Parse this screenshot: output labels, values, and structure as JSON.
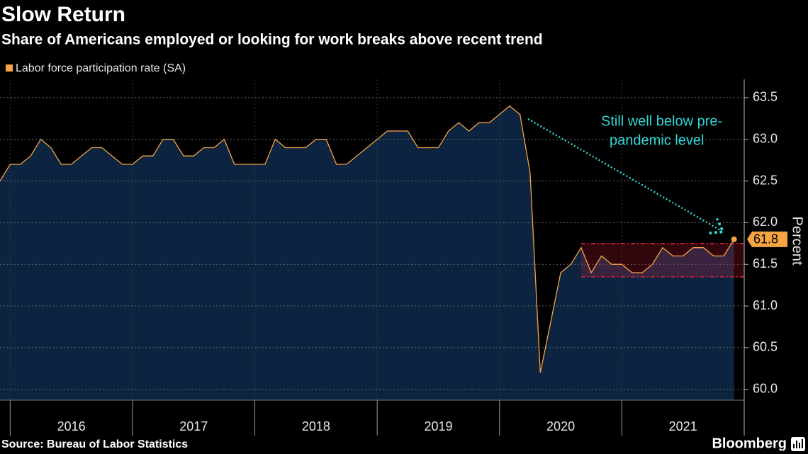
{
  "chart_data": {
    "type": "area",
    "title": "Slow Return",
    "subtitle": "Share of Americans employed or looking for work breaks above recent trend",
    "y_axis_label": "Percent",
    "source": "Source: Bureau of Labor Statistics",
    "brand": "Bloomberg",
    "annotation": [
      "Still well below pre-",
      "pandemic level"
    ],
    "annotation_color": "#33d6d6",
    "highlight_band": {
      "ylim": [
        61.35,
        61.75
      ],
      "x_start": 2020.667,
      "color": "#e0203a"
    },
    "grid": true,
    "legend": "top-left",
    "xlim": [
      2015.917,
      2022.0
    ],
    "xticks": [
      2016,
      2017,
      2018,
      2019,
      2020,
      2021,
      2022
    ],
    "year_labels": [
      {
        "value": 2016.5,
        "label": "2016"
      },
      {
        "value": 2017.5,
        "label": "2017"
      },
      {
        "value": 2018.5,
        "label": "2018"
      },
      {
        "value": 2019.5,
        "label": "2019"
      },
      {
        "value": 2020.5,
        "label": "2020"
      },
      {
        "value": 2021.5,
        "label": "2021"
      }
    ],
    "ylim": [
      59.87,
      63.72
    ],
    "yticks": [
      {
        "value": 60,
        "label": "60.0"
      },
      60.5,
      {
        "value": 61,
        "label": "61.0"
      },
      61.5,
      {
        "value": 62,
        "label": "62.0"
      },
      62.5,
      {
        "value": 63,
        "label": "63.0"
      },
      63.5
    ],
    "x": [
      2015.917,
      2016.0,
      2016.083,
      2016.167,
      2016.25,
      2016.333,
      2016.417,
      2016.5,
      2016.583,
      2016.667,
      2016.75,
      2016.833,
      2016.917,
      2017.0,
      2017.083,
      2017.167,
      2017.25,
      2017.333,
      2017.417,
      2017.5,
      2017.583,
      2017.667,
      2017.75,
      2017.833,
      2017.917,
      2018.0,
      2018.083,
      2018.167,
      2018.25,
      2018.333,
      2018.417,
      2018.5,
      2018.583,
      2018.667,
      2018.75,
      2018.833,
      2018.917,
      2019.0,
      2019.083,
      2019.167,
      2019.25,
      2019.333,
      2019.417,
      2019.5,
      2019.583,
      2019.667,
      2019.75,
      2019.833,
      2019.917,
      2020.0,
      2020.083,
      2020.167,
      2020.25,
      2020.333,
      2020.417,
      2020.5,
      2020.583,
      2020.667,
      2020.75,
      2020.833,
      2020.917,
      2021.0,
      2021.083,
      2021.167,
      2021.25,
      2021.333,
      2021.417,
      2021.5,
      2021.583,
      2021.667,
      2021.75,
      2021.833,
      2021.917
    ],
    "series": [
      {
        "name": "Labor force participation rate (SA)",
        "color": "#f5a443",
        "fill": "#0c2440",
        "values": [
          62.5,
          62.7,
          62.7,
          62.8,
          63.0,
          62.9,
          62.7,
          62.7,
          62.8,
          62.9,
          62.9,
          62.8,
          62.7,
          62.7,
          62.8,
          62.8,
          63.0,
          63.0,
          62.8,
          62.8,
          62.9,
          62.9,
          63.0,
          62.7,
          62.7,
          62.7,
          62.7,
          63.0,
          62.9,
          62.9,
          62.9,
          63.0,
          63.0,
          62.7,
          62.7,
          62.8,
          62.9,
          63.0,
          63.1,
          63.1,
          63.1,
          62.9,
          62.9,
          62.9,
          63.1,
          63.2,
          63.1,
          63.2,
          63.2,
          63.3,
          63.4,
          63.3,
          62.6,
          60.2,
          60.8,
          61.4,
          61.5,
          61.7,
          61.4,
          61.6,
          61.5,
          61.5,
          61.4,
          61.4,
          61.5,
          61.7,
          61.6,
          61.6,
          61.7,
          61.7,
          61.6,
          61.6,
          61.8
        ]
      }
    ]
  }
}
